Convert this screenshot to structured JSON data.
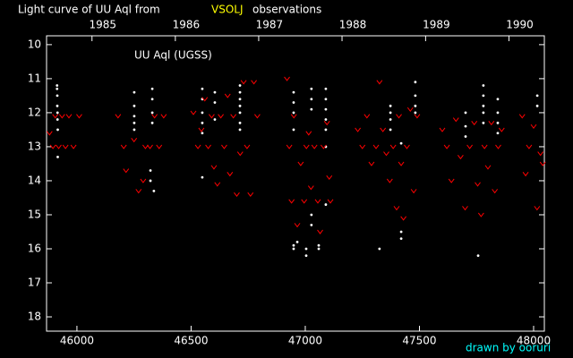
{
  "chart_data": {
    "type": "scatter",
    "title": "Light curve of UU Aql from",
    "title_highlight": "VSOLJ",
    "title_end": "observations",
    "annotation": "UU Aql (UGSS)",
    "credit": "drawn by ooruri",
    "xlim": [
      45867,
      48047
    ],
    "ylim": [
      18.42,
      9.74
    ],
    "xticks": [
      46000,
      46500,
      47000,
      47500,
      48000
    ],
    "yticks": [
      10,
      11,
      12,
      13,
      14,
      15,
      16,
      17,
      18
    ],
    "x2ticks": [
      {
        "value": 46066,
        "label": "1985"
      },
      {
        "value": 46431,
        "label": "1986"
      },
      {
        "value": 46796,
        "label": "1987"
      },
      {
        "value": 47161,
        "label": "1988"
      },
      {
        "value": 47527,
        "label": "1989"
      },
      {
        "value": 47892,
        "label": "1990"
      }
    ],
    "series": [
      {
        "color": "#ffffff",
        "marker": "dot",
        "x": [
          45913,
          45913,
          45914,
          45914,
          45915,
          45915,
          45916,
          45916,
          46251,
          46251,
          46251,
          46251,
          46251,
          46322,
          46322,
          46337,
          46330,
          46330,
          46330,
          46330,
          46549,
          46549,
          46549,
          46549,
          46549,
          46549,
          46604,
          46604,
          46604,
          46714,
          46714,
          46714,
          46714,
          46714,
          46714,
          46714,
          46949,
          46949,
          46949,
          46949,
          46949,
          46949,
          46965,
          47004,
          47004,
          47027,
          47027,
          47027,
          47027,
          47027,
          47059,
          47059,
          47090,
          47090,
          47090,
          47090,
          47090,
          47090,
          47090,
          47325,
          47373,
          47373,
          47373,
          47373,
          47420,
          47420,
          47420,
          47482,
          47482,
          47482,
          47482,
          47702,
          47702,
          47702,
          47757,
          47780,
          47780,
          47780,
          47780,
          47780,
          47843,
          47843,
          47843,
          47843,
          48016,
          48016
        ],
        "y": [
          11.2,
          11.3,
          11.5,
          11.8,
          12.0,
          12.2,
          12.5,
          13.3,
          11.4,
          11.8,
          12.1,
          12.3,
          12.5,
          13.7,
          14.0,
          14.3,
          11.3,
          11.6,
          12.0,
          12.3,
          11.3,
          11.6,
          12.0,
          12.3,
          12.6,
          13.9,
          11.4,
          11.7,
          12.2,
          11.2,
          11.4,
          11.6,
          11.8,
          12.0,
          12.3,
          12.5,
          11.4,
          11.7,
          12.0,
          12.5,
          15.9,
          16.0,
          15.8,
          16.0,
          16.2,
          15.3,
          15.0,
          11.3,
          11.6,
          11.9,
          16.0,
          15.9,
          11.3,
          11.6,
          11.9,
          12.2,
          12.5,
          13.0,
          14.7,
          16.0,
          11.8,
          12.0,
          12.2,
          12.5,
          12.9,
          15.5,
          15.7,
          11.1,
          11.5,
          11.8,
          12.0,
          12.0,
          12.4,
          12.7,
          16.2,
          11.2,
          11.5,
          11.8,
          12.0,
          12.3,
          11.6,
          12.0,
          12.3,
          12.6,
          11.5,
          11.8
        ]
      },
      {
        "color": "#ff0000",
        "marker": "v",
        "x": [
          45880,
          45895,
          45905,
          45920,
          45935,
          45950,
          45965,
          45985,
          46010,
          46180,
          46205,
          46215,
          46250,
          46270,
          46290,
          46300,
          46320,
          46340,
          46360,
          46380,
          46510,
          46530,
          46545,
          46560,
          46575,
          46590,
          46600,
          46615,
          46630,
          46645,
          46660,
          46670,
          46685,
          46700,
          46715,
          46730,
          46745,
          46760,
          46775,
          46790,
          46920,
          46930,
          46940,
          46950,
          46965,
          46980,
          46995,
          47005,
          47015,
          47025,
          47040,
          47055,
          47065,
          47080,
          47095,
          47105,
          47110,
          47230,
          47250,
          47270,
          47290,
          47310,
          47325,
          47340,
          47355,
          47370,
          47385,
          47400,
          47410,
          47420,
          47430,
          47445,
          47460,
          47475,
          47490,
          47600,
          47620,
          47640,
          47660,
          47680,
          47700,
          47720,
          47740,
          47755,
          47770,
          47785,
          47800,
          47815,
          47830,
          47845,
          47860,
          47950,
          47965,
          47980,
          48000,
          48015,
          48030,
          48040
        ],
        "y": [
          12.6,
          13.0,
          12.1,
          13.0,
          12.1,
          13.0,
          12.1,
          13.0,
          12.1,
          12.1,
          13.0,
          13.7,
          12.8,
          14.3,
          14.0,
          13.0,
          13.0,
          12.1,
          13.0,
          12.1,
          12.0,
          13.0,
          12.5,
          11.6,
          13.0,
          12.1,
          13.6,
          14.1,
          12.1,
          13.0,
          11.5,
          13.8,
          12.1,
          14.4,
          13.2,
          11.1,
          13.0,
          14.4,
          11.1,
          12.1,
          11.0,
          13.0,
          14.6,
          12.1,
          15.3,
          13.5,
          14.6,
          13.0,
          12.6,
          14.2,
          13.0,
          14.6,
          15.5,
          13.0,
          12.3,
          13.9,
          14.6,
          12.5,
          13.0,
          12.1,
          13.5,
          13.0,
          11.1,
          12.5,
          13.2,
          14.0,
          13.0,
          14.8,
          12.1,
          13.5,
          15.1,
          13.0,
          11.9,
          14.3,
          12.1,
          12.5,
          13.0,
          14.0,
          12.2,
          13.3,
          14.8,
          13.0,
          12.3,
          14.1,
          15.0,
          13.0,
          13.6,
          12.3,
          14.3,
          13.0,
          12.5,
          12.1,
          13.8,
          13.0,
          12.4,
          14.8,
          13.2,
          13.5
        ]
      }
    ]
  }
}
